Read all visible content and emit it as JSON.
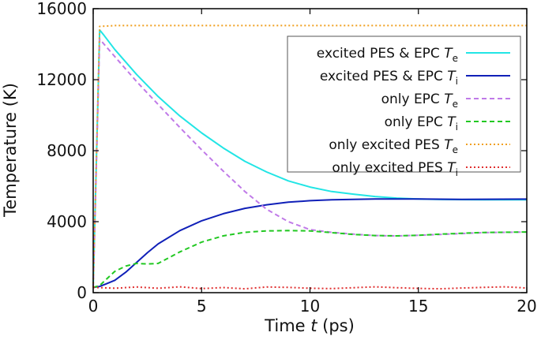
{
  "chart_data": {
    "type": "line",
    "xlabel": {
      "pre": "Time ",
      "var": "t",
      "post": " (ps)"
    },
    "ylabel": "Temperature (K)",
    "xlim": [
      0,
      20
    ],
    "ylim": [
      0,
      16000
    ],
    "xticks": [
      0,
      5,
      10,
      15,
      20
    ],
    "yticks": [
      0,
      4000,
      8000,
      12000,
      16000
    ],
    "grid": false,
    "legend_position": "top-right",
    "series": [
      {
        "name": "excited PES & EPC T_e",
        "label_pre": "excited PES & EPC ",
        "symbol": "T",
        "sub": "e",
        "color": "#22e5e5",
        "style": "solid",
        "points": [
          [
            0,
            300
          ],
          [
            0.3,
            14800
          ],
          [
            0.5,
            14500
          ],
          [
            1,
            13700
          ],
          [
            2,
            12300
          ],
          [
            3,
            11050
          ],
          [
            4,
            9950
          ],
          [
            5,
            9000
          ],
          [
            6,
            8150
          ],
          [
            7,
            7400
          ],
          [
            8,
            6800
          ],
          [
            9,
            6300
          ],
          [
            10,
            5950
          ],
          [
            11,
            5700
          ],
          [
            12,
            5550
          ],
          [
            13,
            5420
          ],
          [
            14,
            5330
          ],
          [
            15,
            5280
          ],
          [
            16,
            5250
          ],
          [
            18,
            5230
          ],
          [
            20,
            5230
          ]
        ]
      },
      {
        "name": "excited PES & EPC T_i",
        "label_pre": "excited PES & EPC ",
        "symbol": "T",
        "sub": "i",
        "color": "#1020b8",
        "style": "solid",
        "points": [
          [
            0,
            300
          ],
          [
            0.3,
            350
          ],
          [
            0.6,
            500
          ],
          [
            1,
            700
          ],
          [
            1.5,
            1150
          ],
          [
            2,
            1700
          ],
          [
            2.5,
            2250
          ],
          [
            3,
            2750
          ],
          [
            4,
            3500
          ],
          [
            5,
            4050
          ],
          [
            6,
            4450
          ],
          [
            7,
            4750
          ],
          [
            8,
            4950
          ],
          [
            9,
            5100
          ],
          [
            10,
            5180
          ],
          [
            11,
            5230
          ],
          [
            12,
            5260
          ],
          [
            13,
            5280
          ],
          [
            15,
            5280
          ],
          [
            17,
            5260
          ],
          [
            20,
            5270
          ]
        ]
      },
      {
        "name": "only EPC T_e",
        "label_pre": "only EPC ",
        "symbol": "T",
        "sub": "e",
        "color": "#c07ae8",
        "style": "dashed",
        "points": [
          [
            0,
            300
          ],
          [
            0.3,
            14300
          ],
          [
            0.5,
            14000
          ],
          [
            1,
            13300
          ],
          [
            2,
            11900
          ],
          [
            3,
            10600
          ],
          [
            4,
            9300
          ],
          [
            5,
            8050
          ],
          [
            6,
            6850
          ],
          [
            7,
            5700
          ],
          [
            8,
            4700
          ],
          [
            9,
            4000
          ],
          [
            10,
            3550
          ],
          [
            11,
            3400
          ],
          [
            12,
            3300
          ],
          [
            13,
            3220
          ],
          [
            14,
            3200
          ],
          [
            15,
            3230
          ],
          [
            16,
            3280
          ],
          [
            18,
            3380
          ],
          [
            20,
            3420
          ]
        ]
      },
      {
        "name": "only EPC T_i",
        "label_pre": "only EPC ",
        "symbol": "T",
        "sub": "i",
        "color": "#22c822",
        "style": "dashed",
        "points": [
          [
            0,
            300
          ],
          [
            0.3,
            400
          ],
          [
            0.6,
            750
          ],
          [
            1,
            1200
          ],
          [
            1.5,
            1500
          ],
          [
            2,
            1650
          ],
          [
            2.5,
            1620
          ],
          [
            3,
            1650
          ],
          [
            4,
            2300
          ],
          [
            5,
            2850
          ],
          [
            6,
            3200
          ],
          [
            7,
            3400
          ],
          [
            8,
            3480
          ],
          [
            9,
            3500
          ],
          [
            10,
            3480
          ],
          [
            11,
            3380
          ],
          [
            12,
            3280
          ],
          [
            13,
            3220
          ],
          [
            14,
            3200
          ],
          [
            15,
            3230
          ],
          [
            16,
            3300
          ],
          [
            18,
            3390
          ],
          [
            20,
            3420
          ]
        ]
      },
      {
        "name": "only excited PES T_e",
        "label_pre": "only excited PES ",
        "symbol": "T",
        "sub": "e",
        "color": "#f0a020",
        "style": "dotted",
        "points": [
          [
            0,
            300
          ],
          [
            0.3,
            15000
          ],
          [
            1,
            15050
          ],
          [
            20,
            15050
          ]
        ]
      },
      {
        "name": "only excited PES T_i",
        "label_pre": "only excited PES ",
        "symbol": "T",
        "sub": "i",
        "color": "#e03030",
        "style": "dotted",
        "points": [
          [
            0,
            300
          ],
          [
            1,
            250
          ],
          [
            2,
            320
          ],
          [
            3,
            250
          ],
          [
            4,
            330
          ],
          [
            5,
            230
          ],
          [
            6,
            290
          ],
          [
            7,
            220
          ],
          [
            8,
            320
          ],
          [
            9,
            300
          ],
          [
            10,
            250
          ],
          [
            11,
            230
          ],
          [
            12,
            280
          ],
          [
            13,
            330
          ],
          [
            14,
            280
          ],
          [
            15,
            240
          ],
          [
            16,
            220
          ],
          [
            17,
            260
          ],
          [
            18,
            300
          ],
          [
            19,
            330
          ],
          [
            20,
            260
          ]
        ]
      }
    ]
  }
}
